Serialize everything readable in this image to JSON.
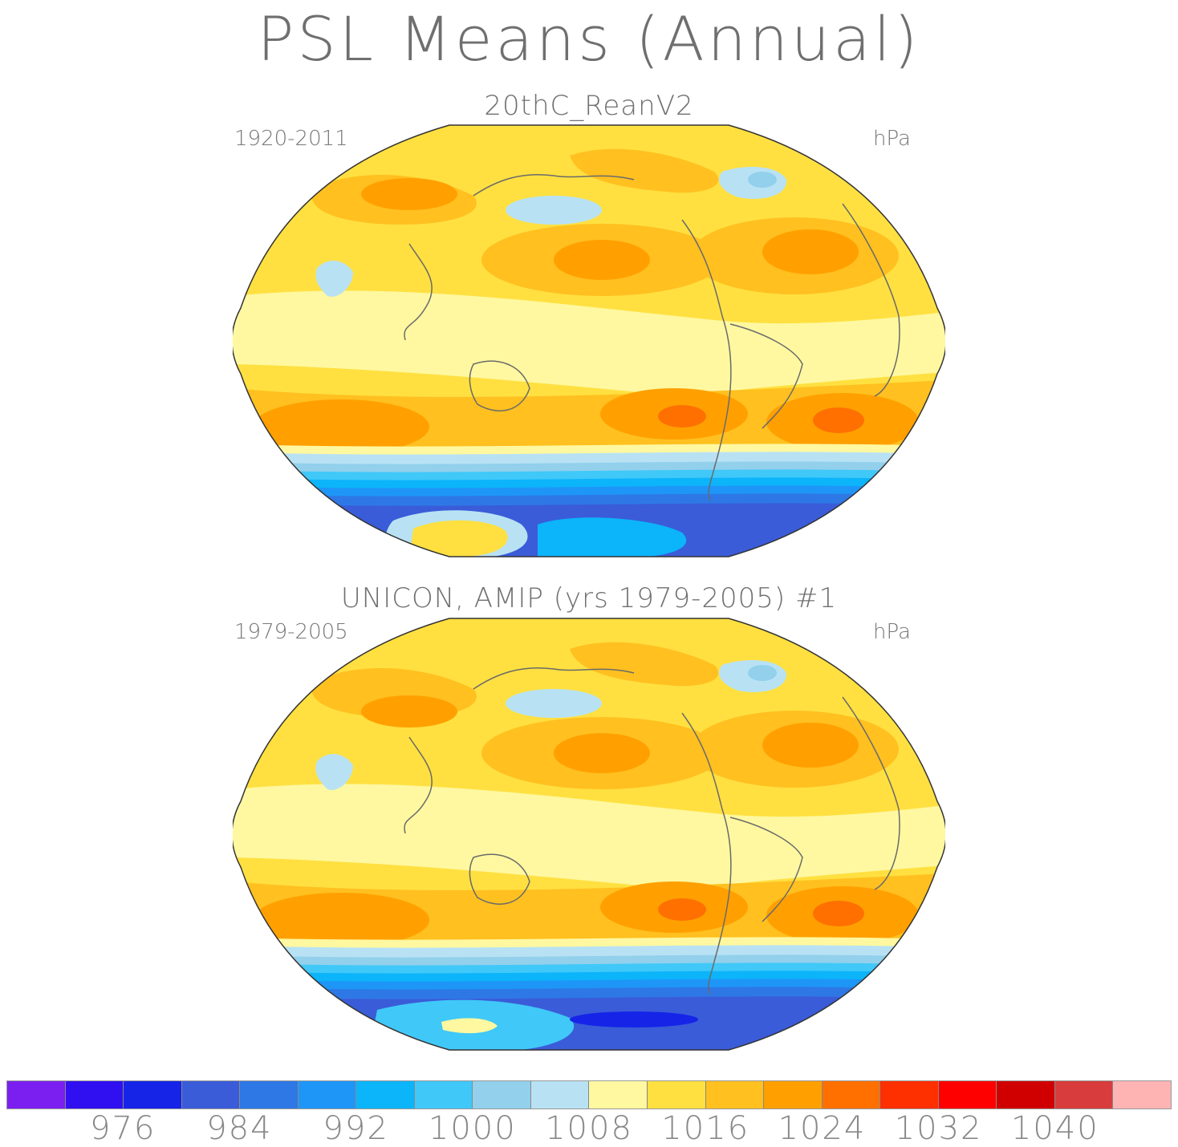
{
  "title": "PSL Means (Annual)",
  "panels": [
    {
      "subtitle": "20thC_ReanV2",
      "period": "1920-2011",
      "units": "hPa",
      "antarctic_high": true
    },
    {
      "subtitle": "UNICON, AMIP (yrs 1979-2005)      #1",
      "period": "1979-2005",
      "units": "hPa",
      "antarctic_high": false
    }
  ],
  "colorbar": {
    "colors": [
      "#7b1ff0",
      "#3010f0",
      "#1624e8",
      "#3a5cd8",
      "#2e78e6",
      "#1e96f8",
      "#0cb4fa",
      "#40c8f8",
      "#92d0ec",
      "#b8e2f4",
      "#fff8a0",
      "#ffe040",
      "#ffc020",
      "#ffa000",
      "#ff7000",
      "#ff3000",
      "#ff0000",
      "#d00000",
      "#d83c3c",
      "#ffb4b4"
    ],
    "labels": [
      "976",
      "984",
      "992",
      "1000",
      "1008",
      "1016",
      "1024",
      "1032",
      "1040"
    ],
    "label_boundaries": [
      2,
      4,
      6,
      8,
      10,
      12,
      14,
      16,
      18
    ]
  }
}
